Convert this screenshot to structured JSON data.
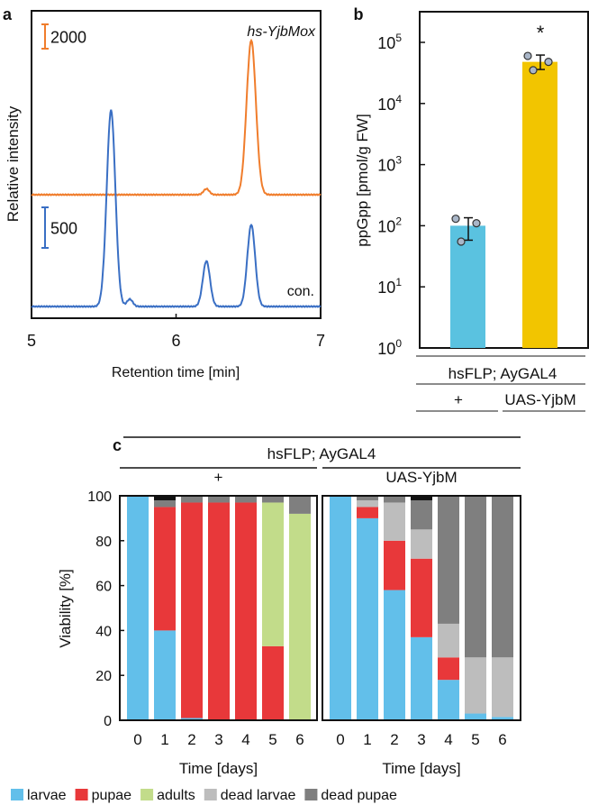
{
  "chart_data": [
    {
      "panel": "a",
      "type": "line",
      "xlabel": "Retention time [min]",
      "ylabel": "Relative intensity",
      "xlim": [
        5,
        7
      ],
      "xticks": [
        "5",
        "6",
        "7"
      ],
      "series": [
        {
          "name": "hs-YjbMox",
          "color": "#f07d2c",
          "scale_bar": "2000",
          "scale_value": 2000,
          "peaks": [
            {
              "rt": 6.21,
              "height": 480,
              "width": 0.02
            },
            {
              "rt": 6.52,
              "height": 12700,
              "width": 0.032
            }
          ]
        },
        {
          "name": "con.",
          "color": "#3a6fc4",
          "scale_bar": "500",
          "scale_value": 500,
          "peaks": [
            {
              "rt": 5.55,
              "height": 2420,
              "width": 0.03
            },
            {
              "rt": 5.68,
              "height": 90,
              "width": 0.02
            },
            {
              "rt": 6.21,
              "height": 560,
              "width": 0.025
            },
            {
              "rt": 6.52,
              "height": 1010,
              "width": 0.027
            }
          ]
        }
      ]
    },
    {
      "panel": "b",
      "type": "bar",
      "ylabel": "ppGpp [pmol/g FW]",
      "yscale": "log",
      "ylim": [
        1,
        300000
      ],
      "yticks": [
        {
          "base": "10",
          "exp": "0"
        },
        {
          "base": "10",
          "exp": "1"
        },
        {
          "base": "10",
          "exp": "2"
        },
        {
          "base": "10",
          "exp": "3"
        },
        {
          "base": "10",
          "exp": "4"
        },
        {
          "base": "10",
          "exp": "5"
        }
      ],
      "group_label": "hsFLP; AyGAL4",
      "categories": [
        "+",
        "UAS-YjbM"
      ],
      "values": [
        100,
        48000
      ],
      "err_low": [
        58,
        36000
      ],
      "err_high": [
        135,
        62000
      ],
      "points": [
        [
          130,
          55,
          110
        ],
        [
          60000,
          35000,
          48000
        ]
      ],
      "colors": [
        "#5ac2e0",
        "#f2c500"
      ],
      "annotations": [
        "",
        "*"
      ]
    },
    {
      "panel": "c",
      "type": "bar",
      "stacked": true,
      "ylabel": "Viability [%]",
      "xlabel": "Time [days]",
      "ylim": [
        0,
        100
      ],
      "yticks": [
        "0",
        "20",
        "40",
        "60",
        "80",
        "100"
      ],
      "group_label": "hsFLP; AyGAL4",
      "categories": [
        "0",
        "1",
        "2",
        "3",
        "4",
        "5",
        "6"
      ],
      "series_meta": [
        {
          "name": "larvae",
          "color": "#62bfea"
        },
        {
          "name": "pupae",
          "color": "#e8383a"
        },
        {
          "name": "adults",
          "color": "#c2dc8a"
        },
        {
          "name": "dead larvae",
          "color": "#bdbdbd"
        },
        {
          "name": "dead pupae",
          "color": "#7f7f7f"
        },
        {
          "name": "",
          "color": "#111111"
        }
      ],
      "groups": [
        {
          "label": "+",
          "data": [
            [
              100,
              0,
              0,
              0,
              0,
              0
            ],
            [
              40,
              55,
              0,
              0,
              3,
              2
            ],
            [
              1,
              96,
              0,
              0,
              3,
              0
            ],
            [
              0,
              97,
              0,
              0,
              3,
              0
            ],
            [
              0,
              97,
              0,
              0,
              3,
              0
            ],
            [
              0,
              33,
              64,
              0,
              3,
              0
            ],
            [
              0,
              0,
              92,
              0,
              8,
              0
            ]
          ]
        },
        {
          "label": "UAS-YjbM",
          "data": [
            [
              100,
              0,
              0,
              0,
              0,
              0
            ],
            [
              90,
              5,
              0,
              3,
              2,
              0
            ],
            [
              58,
              22,
              0,
              17,
              3,
              0
            ],
            [
              37,
              35,
              0,
              13,
              13,
              2
            ],
            [
              18,
              10,
              0,
              15,
              57,
              0
            ],
            [
              3,
              0,
              0,
              25,
              72,
              0
            ],
            [
              1.5,
              0,
              0,
              26.5,
              72,
              0
            ]
          ]
        }
      ]
    }
  ],
  "labels": {
    "a": "a",
    "b": "b",
    "c": "c"
  }
}
